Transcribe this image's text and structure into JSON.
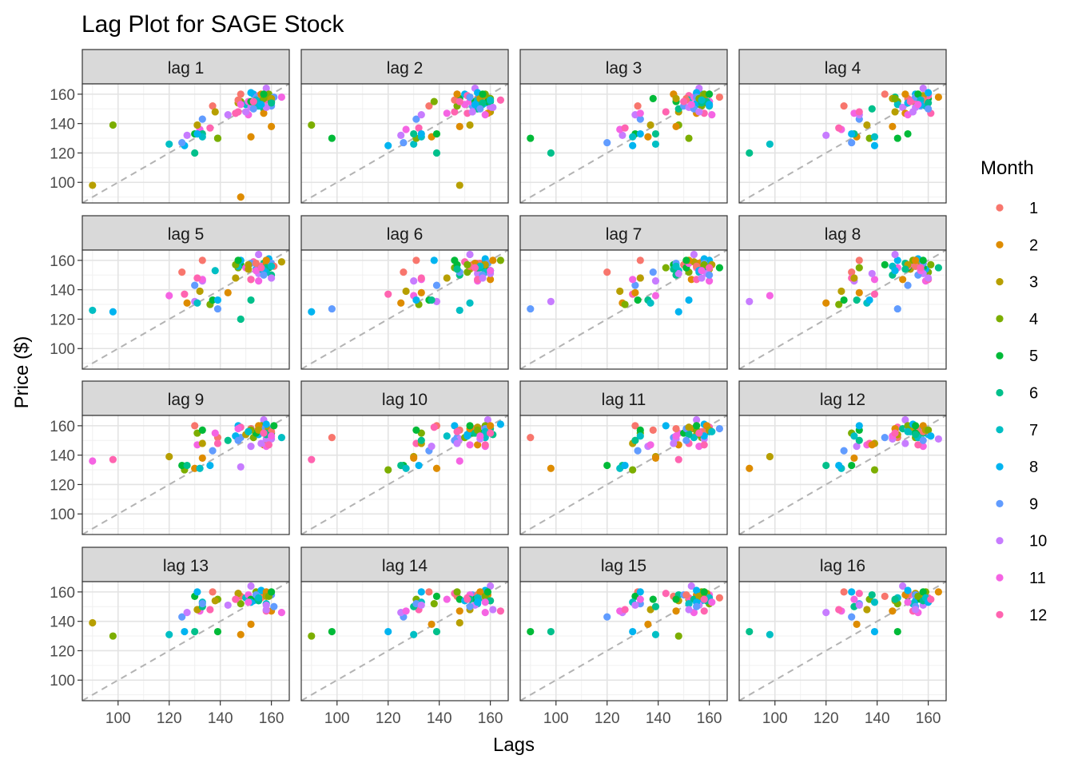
{
  "chart_data": {
    "type": "scatter",
    "title": "Lag Plot for SAGE Stock",
    "xlabel": "Lags",
    "ylabel": "Price ($)",
    "xlim": [
      86,
      167
    ],
    "ylim": [
      86,
      167
    ],
    "x_ticks": [
      100,
      120,
      140,
      160
    ],
    "y_ticks": [
      100,
      120,
      140,
      160
    ],
    "grid": true,
    "reference_line": "y = x (dashed grey)",
    "legend": {
      "title": "Month",
      "placement": "right",
      "entries": [
        "1",
        "2",
        "3",
        "4",
        "5",
        "6",
        "7",
        "8",
        "9",
        "10",
        "11",
        "12"
      ],
      "colors": [
        "#F8766D",
        "#DE8C00",
        "#B79F00",
        "#7CAE00",
        "#00BA38",
        "#00C08B",
        "#00BFC4",
        "#00B4F0",
        "#619CFF",
        "#C77CFF",
        "#F564E3",
        "#FF64B0"
      ]
    },
    "panels": [
      "lag 1",
      "lag 2",
      "lag 3",
      "lag 4",
      "lag 5",
      "lag 6",
      "lag 7",
      "lag 8",
      "lag 9",
      "lag 10",
      "lag 11",
      "lag 12",
      "lag 13",
      "lag 14",
      "lag 15",
      "lag 16"
    ],
    "series": [
      {
        "month": 1,
        "price": [
          148,
          152,
          160,
          157,
          158,
          156
        ]
      },
      {
        "month": 2,
        "price": [
          90,
          131,
          138,
          147,
          158,
          160
        ]
      },
      {
        "month": 3,
        "price": [
          98,
          139,
          148,
          154,
          159,
          157
        ]
      },
      {
        "month": 4,
        "price": [
          139,
          130,
          155,
          152,
          160,
          157
        ]
      },
      {
        "month": 5,
        "price": [
          130,
          133,
          157,
          155,
          155,
          160
        ]
      },
      {
        "month": 6,
        "price": [
          120,
          133,
          150,
          158,
          155,
          154
        ]
      },
      {
        "month": 7,
        "price": [
          126,
          131,
          153,
          156,
          152,
          156
        ]
      },
      {
        "month": 8,
        "price": [
          125,
          133,
          160,
          154,
          161,
          153
        ]
      },
      {
        "month": 9,
        "price": [
          127,
          143,
          152,
          158,
          158,
          150
        ]
      },
      {
        "month": 10,
        "price": [
          132,
          146,
          151,
          164,
          151,
          148
        ]
      },
      {
        "month": 11,
        "price": [
          136,
          147,
          155,
          158,
          146,
          153
        ]
      },
      {
        "month": 12,
        "price": [
          137,
          148,
          159,
          156,
          147,
          155
        ]
      }
    ]
  }
}
